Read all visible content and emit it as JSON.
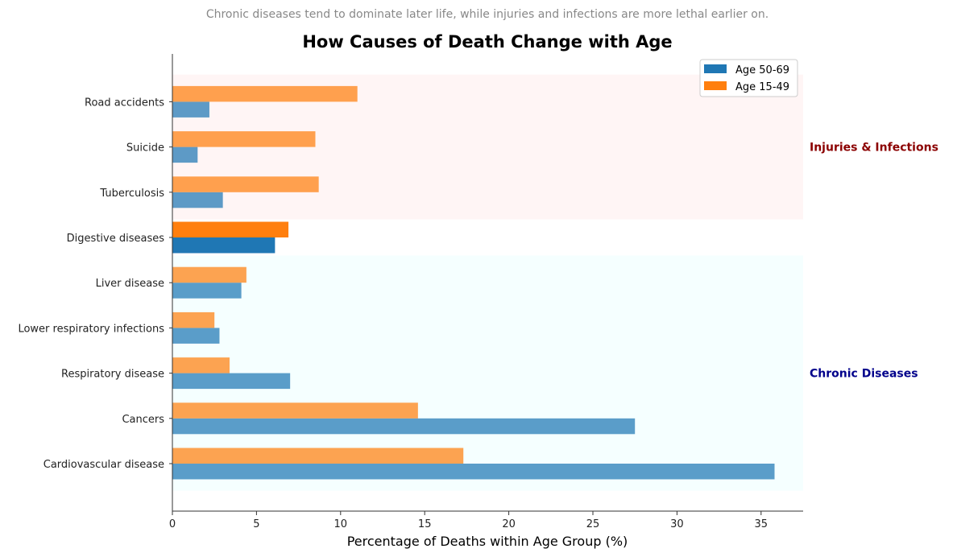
{
  "chart_data": {
    "type": "bar",
    "orientation": "horizontal",
    "subtitle": "Chronic diseases tend to dominate later life, while injuries and infections are more lethal earlier on.",
    "title": "How Causes of Death Change with Age",
    "xlabel": "Percentage of Deaths within Age Group (%)",
    "ylabel": "",
    "xlim": [
      0,
      37.5
    ],
    "x_ticks": [
      "0",
      "5",
      "10",
      "15",
      "20",
      "25",
      "30",
      "35"
    ],
    "categories": [
      "Cardiovascular disease",
      "Cancers",
      "Respiratory disease",
      "Lower respiratory infections",
      "Liver disease",
      "Digestive diseases",
      "Tuberculosis",
      "Suicide",
      "Road accidents"
    ],
    "series": [
      {
        "name": "Age 50-69",
        "color": "#1f77b4",
        "values": [
          35.8,
          27.5,
          7.0,
          2.8,
          4.1,
          6.1,
          3.0,
          1.5,
          2.2
        ]
      },
      {
        "name": "Age 15-49",
        "color": "#ff7f0e",
        "values": [
          17.3,
          14.6,
          3.4,
          2.5,
          4.4,
          6.9,
          8.7,
          8.5,
          11.0
        ]
      }
    ],
    "groups": [
      {
        "label": "Injuries & Infections",
        "color": "#8b0000",
        "bg": "#fff5f5",
        "categories": [
          "Tuberculosis",
          "Suicide",
          "Road accidents"
        ]
      },
      {
        "label": "Chronic Diseases",
        "color": "#00008b",
        "bg": "#f5ffff",
        "categories": [
          "Cardiovascular disease",
          "Cancers",
          "Respiratory disease",
          "Lower respiratory infections",
          "Liver disease"
        ]
      }
    ],
    "highlight_category": "Digestive diseases",
    "legend": "top-right",
    "grid": false
  }
}
